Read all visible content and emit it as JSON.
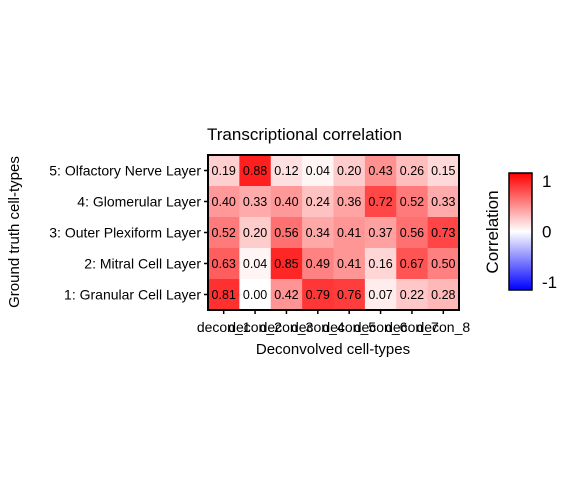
{
  "chart_data": {
    "type": "heatmap",
    "title": "Transcriptional correlation",
    "xlabel": "Deconvolved cell-types",
    "ylabel": "Ground truth cell-types",
    "x_categories": [
      "decon_1",
      "decon_2",
      "decon_3",
      "decon_4",
      "decon_5",
      "decon_6",
      "decon_7",
      "decon_8"
    ],
    "y_categories": [
      "5: Olfactory Nerve Layer",
      "4: Glomerular Layer",
      "3: Outer Plexiform Layer",
      "2: Mitral Cell Layer",
      "1: Granular Cell Layer"
    ],
    "values": [
      [
        0.19,
        0.88,
        0.12,
        0.04,
        0.2,
        0.43,
        0.26,
        0.15
      ],
      [
        0.4,
        0.33,
        0.4,
        0.24,
        0.36,
        0.72,
        0.52,
        0.33
      ],
      [
        0.52,
        0.2,
        0.56,
        0.34,
        0.41,
        0.37,
        0.56,
        0.73
      ],
      [
        0.63,
        0.04,
        0.85,
        0.49,
        0.41,
        0.16,
        0.67,
        0.5
      ],
      [
        0.81,
        0.0,
        0.42,
        0.79,
        0.76,
        0.07,
        0.22,
        0.28
      ]
    ],
    "value_labels": [
      [
        "0.19",
        "0.88",
        "0.12",
        "0.04",
        "0.20",
        "0.43",
        "0.26",
        "0.15"
      ],
      [
        "0.40",
        "0.33",
        "0.40",
        "0.24",
        "0.36",
        "0.72",
        "0.52",
        "0.33"
      ],
      [
        "0.52",
        "0.20",
        "0.56",
        "0.34",
        "0.41",
        "0.37",
        "0.56",
        "0.73"
      ],
      [
        "0.63",
        "0.04",
        "0.85",
        "0.49",
        "0.41",
        "0.16",
        "0.67",
        "0.50"
      ],
      [
        "0.81",
        "0.00",
        "0.42",
        "0.79",
        "0.76",
        "0.07",
        "0.22",
        "0.28"
      ]
    ],
    "legend": {
      "title": "Correlation",
      "range": [
        -1,
        1
      ],
      "ticks": [
        "1",
        "0",
        "-1"
      ],
      "colors": {
        "low": "#0000ff",
        "mid": "#ffffff",
        "high": "#ff0000"
      },
      "placement": "right"
    },
    "grid": false
  }
}
